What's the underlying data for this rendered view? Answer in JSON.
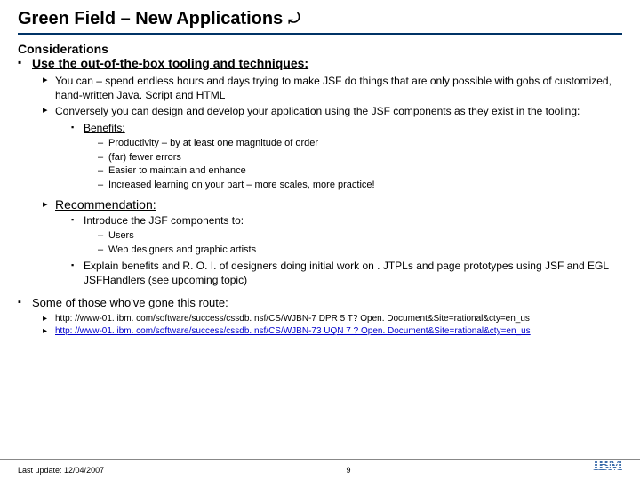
{
  "title": "Green Field – New Applications",
  "considerations_label": "Considerations",
  "main_bullet": "Use the out-of-the-box tooling and techniques:",
  "tri1": "You can – spend endless hours and days trying to make JSF do things that are only possible with gobs of customized, hand-written Java. Script and HTML",
  "tri2": "Conversely you can design and develop your application using the JSF components as they exist in the tooling:",
  "benefits_label": "Benefits:",
  "benefit_items": [
    "Productivity – by at least one magnitude of order",
    "(far) fewer errors",
    "Easier to maintain and enhance",
    "Increased learning on  your part – more scales, more practice!"
  ],
  "recommendation_label": "Recommendation:",
  "rec_intro": "Introduce the JSF components to:",
  "rec_targets": [
    "Users",
    "Web designers and graphic artists"
  ],
  "rec_explain": "Explain benefits and R. O. I. of designers doing initial work on . JTPLs and page prototypes using JSF and EGL JSFHandlers (see upcoming topic)",
  "route_label": "Some of those who've gone this route:",
  "link1": "http: //www-01. ibm. com/software/success/cssdb. nsf/CS/WJBN-7 DPR 5 T? Open. Document&Site=rational&cty=en_us",
  "link2": "http: //www-01. ibm. com/software/success/cssdb. nsf/CS/WJBN-73 UQN 7 ? Open. Document&Site=rational&cty=en_us",
  "last_update": "Last update: 12/04/2007",
  "page_number": "9",
  "logo_text": "IBM",
  "colors": {
    "title_rule": "#003366",
    "link": "#0000cc",
    "logo": "#3b6caa",
    "text": "#000000",
    "background": "#ffffff"
  }
}
